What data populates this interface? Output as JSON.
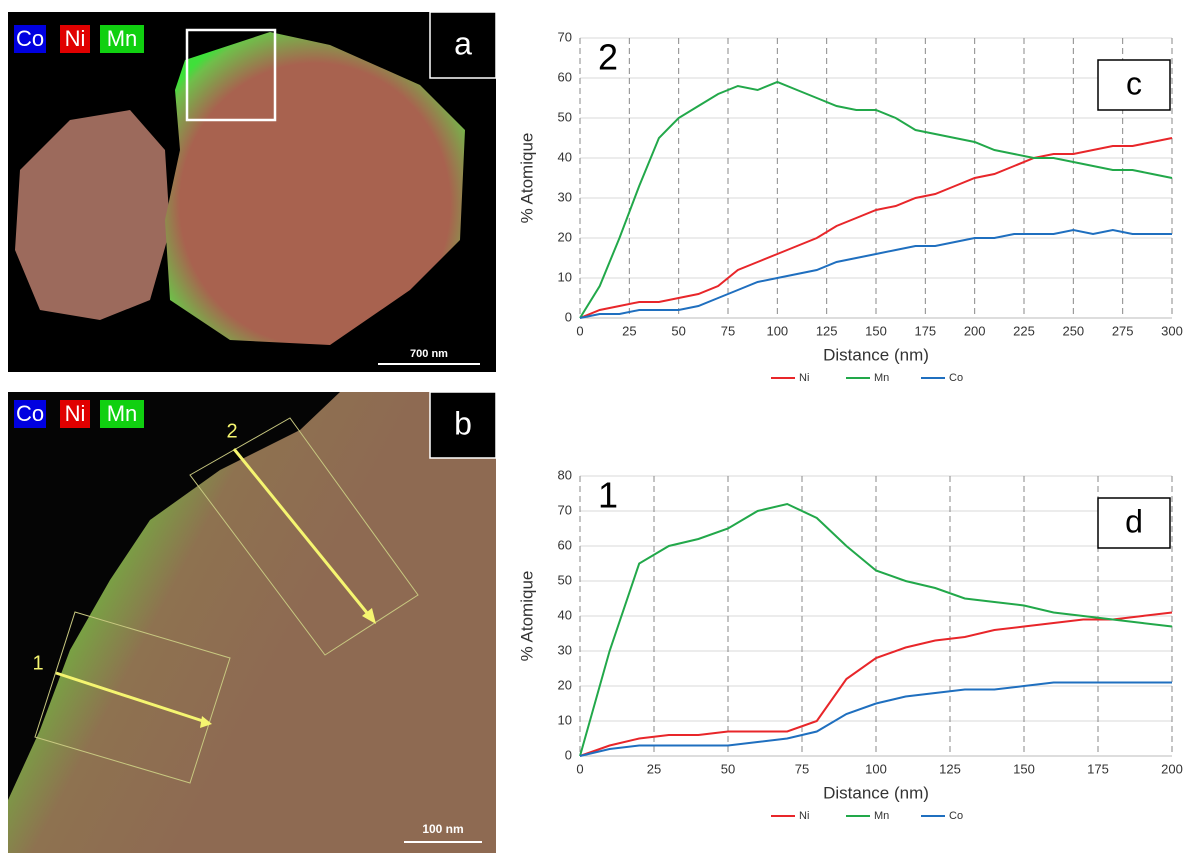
{
  "images": [
    {
      "label": "a",
      "channels": [
        "Co",
        "Ni",
        "Mn"
      ],
      "scale_bar": "700 nm"
    },
    {
      "label": "b",
      "channels": [
        "Co",
        "Ni",
        "Mn"
      ],
      "scale_bar": "100 nm",
      "profiles": [
        "1",
        "2"
      ]
    }
  ],
  "chart_data": [
    {
      "type": "line",
      "label": "c",
      "annotation": "2",
      "x_label": "Distance (nm)",
      "y_label": "% Atomique",
      "x": [
        0,
        10,
        20,
        30,
        40,
        50,
        60,
        70,
        80,
        90,
        100,
        110,
        120,
        130,
        140,
        150,
        160,
        170,
        180,
        190,
        200,
        210,
        220,
        230,
        240,
        250,
        260,
        270,
        280,
        290,
        300
      ],
      "series": [
        {
          "name": "Ni",
          "color": "#e8262a",
          "values": [
            0,
            2,
            3,
            4,
            4,
            5,
            6,
            8,
            12,
            14,
            16,
            18,
            20,
            23,
            25,
            27,
            28,
            30,
            31,
            33,
            35,
            36,
            38,
            40,
            41,
            41,
            42,
            43,
            43,
            44,
            45
          ]
        },
        {
          "name": "Mn",
          "color": "#22a84a",
          "values": [
            0,
            8,
            20,
            33,
            45,
            50,
            53,
            56,
            58,
            57,
            59,
            57,
            55,
            53,
            52,
            52,
            50,
            47,
            46,
            45,
            44,
            42,
            41,
            40,
            40,
            39,
            38,
            37,
            37,
            36,
            35
          ]
        },
        {
          "name": "Co",
          "color": "#1f6fbf",
          "values": [
            0,
            1,
            1,
            2,
            2,
            2,
            3,
            5,
            7,
            9,
            10,
            11,
            12,
            14,
            15,
            16,
            17,
            18,
            18,
            19,
            20,
            20,
            21,
            21,
            21,
            22,
            21,
            22,
            21,
            21,
            21
          ]
        }
      ],
      "xlim": [
        0,
        300
      ],
      "ylim": [
        0,
        70
      ],
      "xticks": [
        0,
        25,
        50,
        75,
        100,
        125,
        150,
        175,
        200,
        225,
        250,
        275,
        300
      ],
      "yticks": [
        0,
        10,
        20,
        30,
        40,
        50,
        60,
        70
      ],
      "grid": true
    },
    {
      "type": "line",
      "label": "d",
      "annotation": "1",
      "x_label": "Distance (nm)",
      "y_label": "% Atomique",
      "x": [
        0,
        10,
        20,
        30,
        40,
        50,
        60,
        70,
        80,
        90,
        100,
        110,
        120,
        130,
        140,
        150,
        160,
        170,
        180,
        190,
        200
      ],
      "series": [
        {
          "name": "Ni",
          "color": "#e8262a",
          "values": [
            0,
            3,
            5,
            6,
            6,
            7,
            7,
            7,
            10,
            22,
            28,
            31,
            33,
            34,
            36,
            37,
            38,
            39,
            39,
            40,
            41
          ]
        },
        {
          "name": "Mn",
          "color": "#22a84a",
          "values": [
            0,
            30,
            55,
            60,
            62,
            65,
            70,
            72,
            68,
            60,
            53,
            50,
            48,
            45,
            44,
            43,
            41,
            40,
            39,
            38,
            37
          ]
        },
        {
          "name": "Co",
          "color": "#1f6fbf",
          "values": [
            0,
            2,
            3,
            3,
            3,
            3,
            4,
            5,
            7,
            12,
            15,
            17,
            18,
            19,
            19,
            20,
            21,
            21,
            21,
            21,
            21
          ]
        }
      ],
      "xlim": [
        0,
        200
      ],
      "ylim": [
        0,
        80
      ],
      "xticks": [
        0,
        25,
        50,
        75,
        100,
        125,
        150,
        175,
        200
      ],
      "yticks": [
        0,
        10,
        20,
        30,
        40,
        50,
        60,
        70,
        80
      ],
      "grid": true
    }
  ]
}
